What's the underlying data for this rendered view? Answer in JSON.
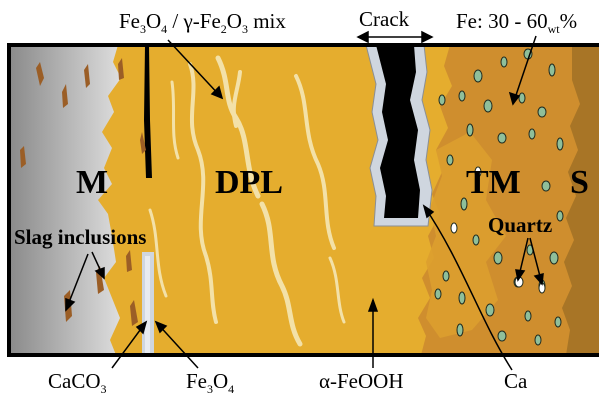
{
  "layers": {
    "m": "M",
    "dpl": "DPL",
    "tm": "TM",
    "s": "S"
  },
  "labels": {
    "slag": "Slag inclusions",
    "quartz": "Quartz",
    "crack": "Crack",
    "fe_mix": {
      "a": "Fe",
      "b": "3",
      "c": "O",
      "d": "4",
      "e": " / γ-Fe",
      "f": "2",
      "g": "O",
      "h": "3",
      "i": " mix"
    },
    "fe_content": {
      "a": "Fe: 30 - 60",
      "b": "wt",
      "c": "%"
    },
    "caco3": {
      "a": "CaCO",
      "b": "3"
    },
    "fe3o4": {
      "a": "Fe",
      "b": "3",
      "c": "O",
      "d": "4"
    },
    "feooh": "α-FeOOH",
    "ca": "Ca"
  },
  "colors": {
    "metal_light": "#d6d6d6",
    "metal_dark": "#8a8a8a",
    "dpl": "#e5ad2e",
    "tm": "#cf8e2e",
    "soil": "#a87526",
    "crack": "#000000",
    "crack_rim": "#cfd6df",
    "pale_streak": "#f3e1a8",
    "quartz": "#8fbf9a",
    "slag": "#9b5e26"
  }
}
